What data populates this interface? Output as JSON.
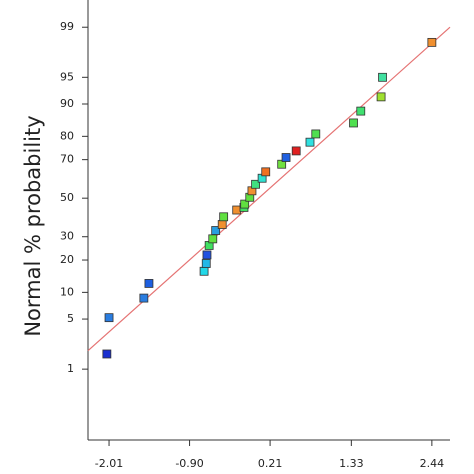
{
  "chart_data": {
    "type": "normal-probability",
    "y_label": "Normal % probability",
    "xlim": [
      -2.3,
      2.69
    ],
    "ylim": [
      0.05,
      99.65
    ],
    "y_scale": "probability",
    "xticks": [
      -2.01,
      {
        "value": -0.9,
        "label": "-0.90"
      },
      0.21,
      1.33,
      2.44
    ],
    "yticks": [
      1,
      5,
      10,
      20,
      30,
      50,
      70,
      80,
      90,
      95,
      99
    ],
    "fit_line": {
      "color": "#e57373",
      "x": [
        -2.3,
        2.69
      ],
      "y": [
        1.9,
        99
      ]
    },
    "x": [
      -2.04,
      -2.01,
      -1.53,
      -1.46,
      -0.7,
      -0.67,
      -0.66,
      -0.63,
      -0.58,
      -0.54,
      -0.45,
      -0.43,
      -0.25,
      -0.15,
      -0.14,
      -0.07,
      -0.04,
      0.01,
      0.1,
      0.15,
      0.37,
      0.43,
      0.57,
      0.76,
      0.84,
      1.36,
      1.46,
      1.74,
      1.76,
      2.44
    ],
    "values": [
      1.7,
      5.2,
      8.7,
      12.3,
      16,
      18.7,
      22,
      26,
      29,
      33,
      36,
      40,
      43.6,
      45,
      46.8,
      50.5,
      54,
      57.5,
      60.7,
      64,
      67.8,
      71,
      74,
      77.7,
      80.9,
      84.7,
      88.2,
      91.6,
      95,
      98.3
    ],
    "colors": [
      "#1a2fcf",
      "#2a7de0",
      "#2a7de0",
      "#1e5fe0",
      "#22d8e8",
      "#22b8e8",
      "#2050e0",
      "#40e060",
      "#60e040",
      "#2a9ee0",
      "#f09030",
      "#60e040",
      "#f09030",
      "#40e060",
      "#60e040",
      "#60e040",
      "#f09030",
      "#40e080",
      "#30e0d0",
      "#f07020",
      "#70e040",
      "#2060e0",
      "#e02020",
      "#30e0e0",
      "#50e050",
      "#50e050",
      "#40e070",
      "#a0e030",
      "#40e0a0",
      "#f09030"
    ]
  }
}
